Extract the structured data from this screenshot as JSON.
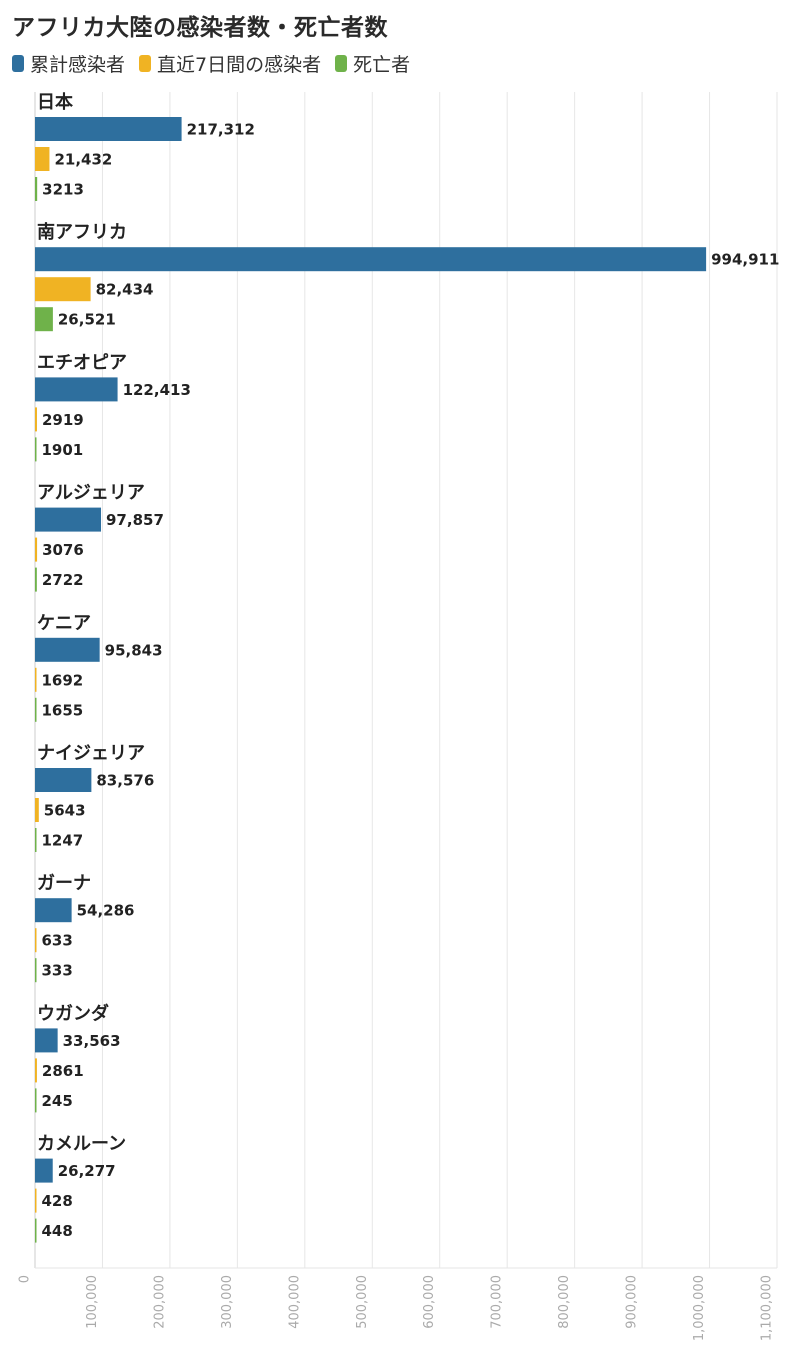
{
  "header": {
    "title": "アフリカ大陸の感染者数・死亡者数"
  },
  "legend": {
    "items": [
      {
        "label": "累計感染者",
        "color": "#2e6f9e"
      },
      {
        "label": "直近7日間の感染者",
        "color": "#f0b323"
      },
      {
        "label": "死亡者",
        "color": "#6fb24a"
      }
    ]
  },
  "chart_data": {
    "type": "bar",
    "orientation": "horizontal",
    "title": "アフリカ大陸の感染者数・死亡者数",
    "categories": [
      "日本",
      "南アフリカ",
      "エチオピア",
      "アルジェリア",
      "ケニア",
      "ナイジェリア",
      "ガーナ",
      "ウガンダ",
      "カメルーン"
    ],
    "series": [
      {
        "name": "累計感染者",
        "color": "#2e6f9e",
        "values": [
          217312,
          994911,
          122413,
          97857,
          95843,
          83576,
          54286,
          33563,
          26277
        ],
        "labels": [
          "217,312",
          "994,911",
          "122,413",
          "97,857",
          "95,843",
          "83,576",
          "54,286",
          "33,563",
          "26,277"
        ]
      },
      {
        "name": "直近7日間の感染者",
        "color": "#f0b323",
        "values": [
          21432,
          82434,
          2919,
          3076,
          1692,
          5643,
          633,
          2861,
          428
        ],
        "labels": [
          "21,432",
          "82,434",
          "2919",
          "3076",
          "1692",
          "5643",
          "633",
          "2861",
          "428"
        ]
      },
      {
        "name": "死亡者",
        "color": "#6fb24a",
        "values": [
          3213,
          26521,
          1901,
          2722,
          1655,
          1247,
          333,
          245,
          448
        ],
        "labels": [
          "3213",
          "26,521",
          "1901",
          "2722",
          "1655",
          "1247",
          "333",
          "245",
          "448"
        ]
      }
    ],
    "xlim": [
      0,
      1100000
    ],
    "xticks": [
      0,
      100000,
      200000,
      300000,
      400000,
      500000,
      600000,
      700000,
      800000,
      900000,
      1000000,
      1100000
    ],
    "xtick_labels": [
      "0",
      "100,000",
      "200,000",
      "300,000",
      "400,000",
      "500,000",
      "600,000",
      "700,000",
      "800,000",
      "900,000",
      "1,000,000",
      "1,100,000"
    ],
    "grid": true
  }
}
